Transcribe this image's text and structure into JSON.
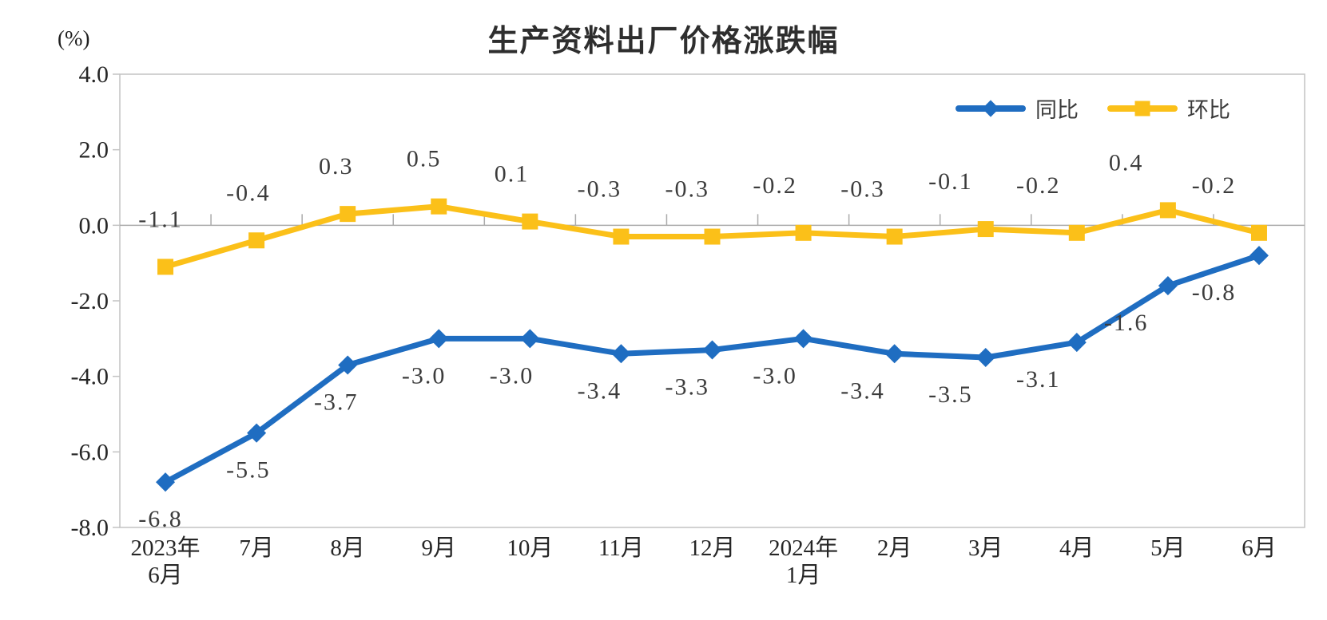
{
  "chart_data": {
    "type": "line",
    "title": "生产资料出厂价格涨跌幅",
    "ylabel": "(%)",
    "ylim": [
      -8.0,
      4.0
    ],
    "ytick_step": 2.0,
    "yticks": [
      "4.0",
      "2.0",
      "0.0",
      "-2.0",
      "-4.0",
      "-6.0",
      "-8.0"
    ],
    "categories": [
      "2023年6月",
      "7月",
      "8月",
      "9月",
      "10月",
      "11月",
      "12月",
      "2024年1月",
      "2月",
      "3月",
      "4月",
      "5月",
      "6月"
    ],
    "category_lines": [
      [
        "2023年",
        "6月"
      ],
      [
        "7月"
      ],
      [
        "8月"
      ],
      [
        "9月"
      ],
      [
        "10月"
      ],
      [
        "11月"
      ],
      [
        "12月"
      ],
      [
        "2024年",
        "1月"
      ],
      [
        "2月"
      ],
      [
        "3月"
      ],
      [
        "4月"
      ],
      [
        "5月"
      ],
      [
        "6月"
      ]
    ],
    "series": [
      {
        "name": "同比",
        "marker": "diamond",
        "color": "#1F6DC1",
        "values": [
          -6.8,
          -5.5,
          -3.7,
          -3.0,
          -3.0,
          -3.4,
          -3.3,
          -3.0,
          -3.4,
          -3.5,
          -3.1,
          -1.6,
          -0.8
        ]
      },
      {
        "name": "环比",
        "marker": "square",
        "color": "#FBC019",
        "values": [
          -1.1,
          -0.4,
          0.3,
          0.5,
          0.1,
          -0.3,
          -0.3,
          -0.2,
          -0.3,
          -0.1,
          -0.2,
          0.4,
          -0.2
        ]
      }
    ],
    "legend_position": "top-right",
    "grid": false
  },
  "colors": {
    "frame": "#C3C3C3",
    "zero_line": "#ABABAB",
    "tick_text": "#262626",
    "data_label_text": "#3C3C3C",
    "title_text": "#2E2E2E"
  }
}
